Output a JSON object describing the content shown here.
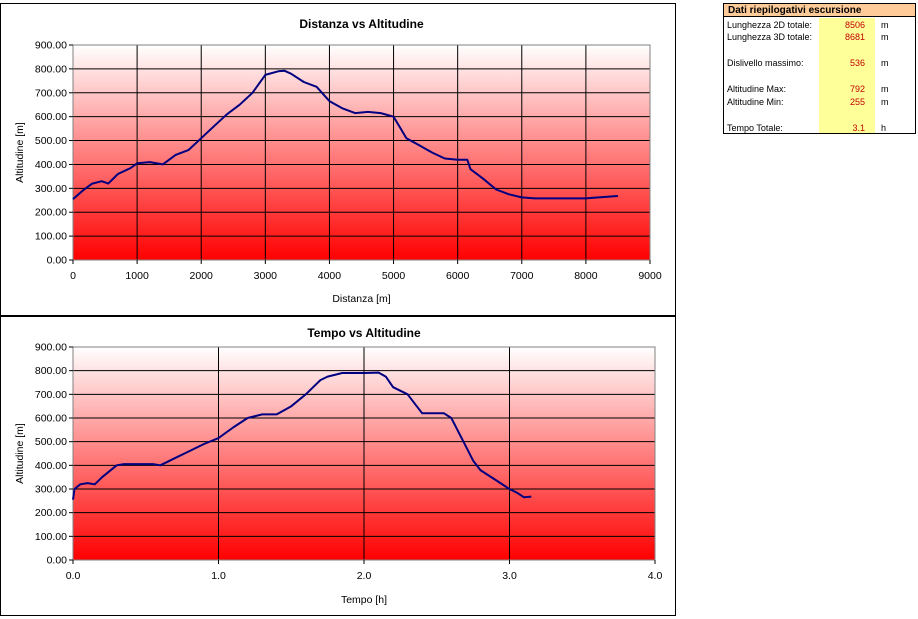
{
  "summary": {
    "title": "Dati riepilogativi escursione",
    "rows": [
      {
        "label": "Lunghezza 2D totale:",
        "value": "8506",
        "unit": "m"
      },
      {
        "label": "Lunghezza 3D totale:",
        "value": "8681",
        "unit": "m"
      },
      {
        "label": "Dislivello massimo:",
        "value": "536",
        "unit": "m"
      },
      {
        "label": "Altitudine Max:",
        "value": "792",
        "unit": "m"
      },
      {
        "label": "Altitudine Min:",
        "value": "255",
        "unit": "m"
      },
      {
        "label": "Tempo Totale:",
        "value": "3.1",
        "unit": "h"
      }
    ]
  },
  "colors": {
    "line": "#000080",
    "gradient_top": "#ffffff",
    "gradient_bottom": "#ff0000",
    "summary_header": "#ffcc99",
    "summary_values_bg": "#ffff99",
    "summary_value_text": "#c00000"
  },
  "chart_data": [
    {
      "type": "line",
      "title": "Distanza vs Altitudine",
      "xlabel": "Distanza [m]",
      "ylabel": "Altitudine [m]",
      "xlim": [
        0,
        9000
      ],
      "ylim": [
        0,
        900
      ],
      "xticks": [
        "0",
        "1000",
        "2000",
        "3000",
        "4000",
        "5000",
        "6000",
        "7000",
        "8000",
        "9000"
      ],
      "yticks": [
        "0.00",
        "100.00",
        "200.00",
        "300.00",
        "400.00",
        "500.00",
        "600.00",
        "700.00",
        "800.00",
        "900.00"
      ],
      "grid": true,
      "series": [
        {
          "x": [
            0,
            150,
            300,
            450,
            550,
            700,
            900,
            1000,
            1200,
            1400,
            1600,
            1800,
            2000,
            2200,
            2400,
            2600,
            2800,
            3000,
            3200,
            3300,
            3400,
            3600,
            3800,
            4000,
            4200,
            4400,
            4600,
            4800,
            5000,
            5200,
            5400,
            5600,
            5800,
            6000,
            6150,
            6200,
            6400,
            6600,
            6800,
            7000,
            7200,
            7500,
            8000,
            8200,
            8500
          ],
          "y": [
            255,
            290,
            320,
            330,
            320,
            360,
            385,
            405,
            410,
            400,
            440,
            460,
            510,
            560,
            610,
            650,
            700,
            775,
            790,
            792,
            780,
            745,
            725,
            665,
            635,
            615,
            620,
            615,
            600,
            510,
            480,
            450,
            425,
            420,
            420,
            380,
            340,
            295,
            275,
            262,
            258,
            258,
            258,
            262,
            268
          ]
        }
      ]
    },
    {
      "type": "line",
      "title": "Tempo vs Altitudine",
      "xlabel": "Tempo [h]",
      "ylabel": "Altitudine [m]",
      "xlim": [
        0,
        4
      ],
      "ylim": [
        0,
        900
      ],
      "xticks": [
        "0.0",
        "1.0",
        "2.0",
        "3.0",
        "4.0"
      ],
      "yticks": [
        "0.00",
        "100.00",
        "200.00",
        "300.00",
        "400.00",
        "500.00",
        "600.00",
        "700.00",
        "800.00",
        "900.00"
      ],
      "grid": true,
      "series": [
        {
          "x": [
            0,
            0.01,
            0.05,
            0.1,
            0.15,
            0.2,
            0.3,
            0.35,
            0.45,
            0.55,
            0.6,
            0.7,
            0.8,
            0.9,
            1.0,
            1.1,
            1.2,
            1.3,
            1.4,
            1.5,
            1.6,
            1.7,
            1.75,
            1.85,
            2.0,
            2.1,
            2.15,
            2.2,
            2.3,
            2.35,
            2.4,
            2.55,
            2.6,
            2.7,
            2.75,
            2.8,
            2.9,
            3.0,
            3.05,
            3.1,
            3.15
          ],
          "y": [
            255,
            300,
            320,
            325,
            320,
            350,
            400,
            405,
            405,
            405,
            400,
            430,
            460,
            490,
            515,
            560,
            600,
            615,
            615,
            650,
            700,
            760,
            775,
            790,
            790,
            792,
            775,
            730,
            700,
            660,
            620,
            620,
            600,
            480,
            420,
            380,
            340,
            300,
            285,
            265,
            268
          ]
        }
      ]
    }
  ]
}
